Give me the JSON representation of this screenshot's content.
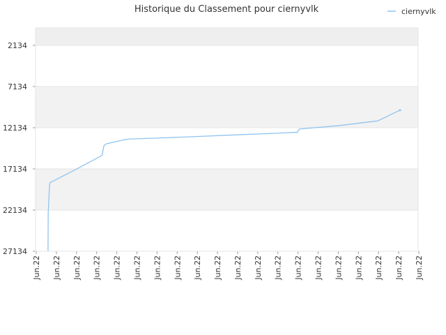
{
  "chart_data": {
    "type": "line",
    "title": "Historique du Classement pour ciernyvlk",
    "xlabel": "",
    "ylabel": "",
    "y_inverted": true,
    "ylim": [
      27134,
      0
    ],
    "y_ticks": [
      2134,
      7134,
      12134,
      17134,
      22134,
      27134
    ],
    "x_tick_labels": [
      "Jun.22",
      "Jun.22",
      "Jun.22",
      "Jun.22",
      "Jun.22",
      "Jun.22",
      "Jun.22",
      "Jun.22",
      "Jun.22",
      "Jun.22",
      "Jun.22",
      "Jun.22",
      "Jun.22",
      "Jun.22",
      "Jun.22",
      "Jun.22",
      "Jun.22",
      "Jun.22",
      "Jun.22",
      "Jun.22"
    ],
    "x_range": [
      0,
      19
    ],
    "grid": "alternating horizontal bands",
    "legend_position": "top-right",
    "series": [
      {
        "name": "ciernyvlk",
        "color": "#8fc3f0",
        "points": [
          [
            0.62,
            27134
          ],
          [
            0.63,
            22400
          ],
          [
            0.7,
            19000
          ],
          [
            0.72,
            18800
          ],
          [
            2.0,
            17200
          ],
          [
            3.3,
            15500
          ],
          [
            3.4,
            14300
          ],
          [
            3.5,
            14100
          ],
          [
            4.4,
            13600
          ],
          [
            4.7,
            13500
          ],
          [
            6.0,
            13400
          ],
          [
            8.0,
            13200
          ],
          [
            10.0,
            13000
          ],
          [
            12.0,
            12800
          ],
          [
            12.8,
            12700
          ],
          [
            13.0,
            12700
          ],
          [
            13.1,
            12300
          ],
          [
            13.3,
            12250
          ],
          [
            15.0,
            11900
          ],
          [
            16.0,
            11600
          ],
          [
            17.0,
            11300
          ],
          [
            18.1,
            10000
          ]
        ]
      }
    ]
  }
}
